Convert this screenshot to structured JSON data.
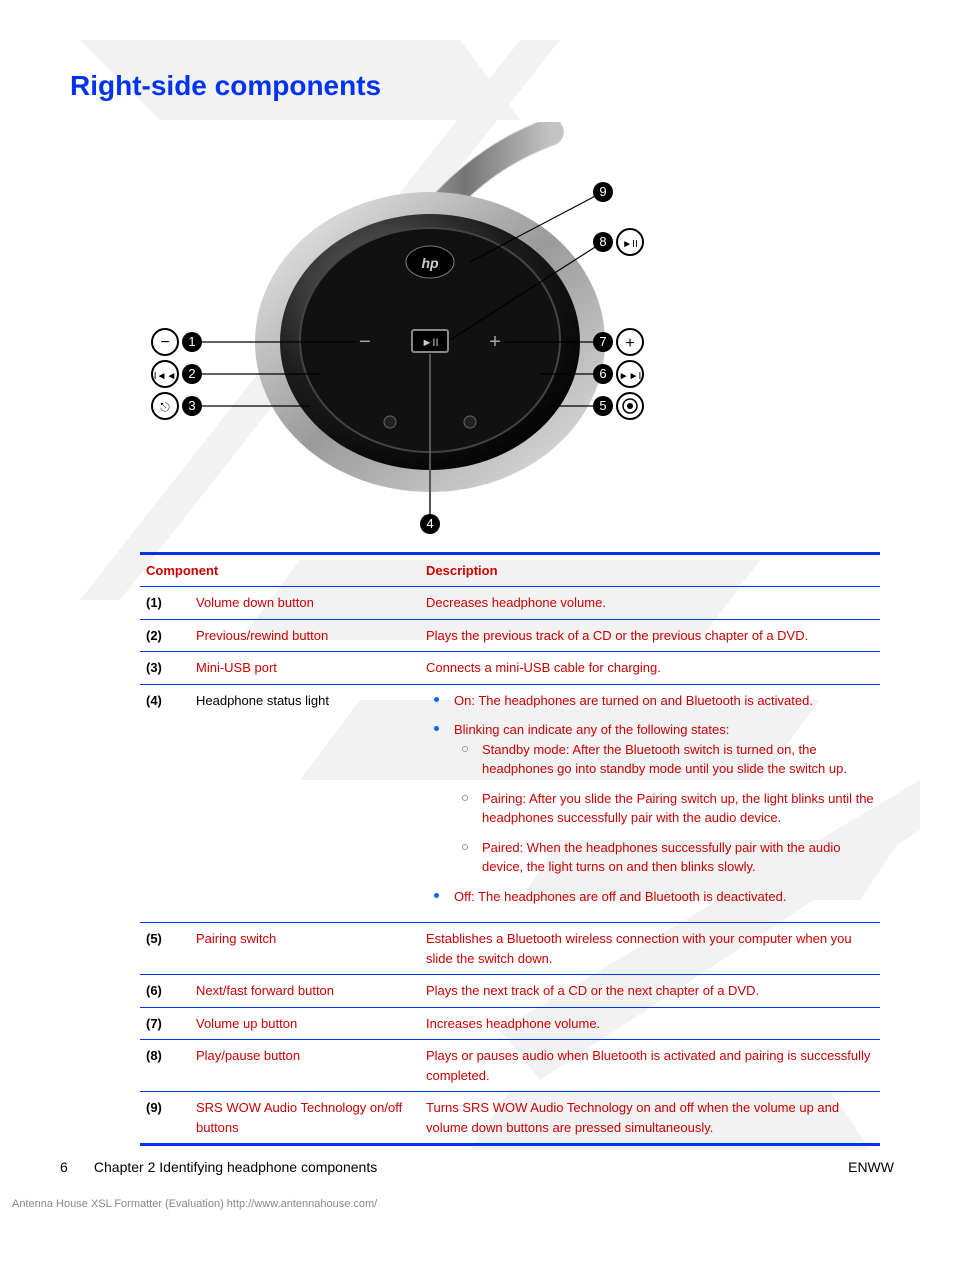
{
  "title": "Right-side components",
  "table": {
    "headers": {
      "component": "Component",
      "description": "Description"
    },
    "rows": [
      {
        "num": "(1)",
        "name": "Volume down button",
        "nameBlack": false,
        "desc": "Decreases headphone volume."
      },
      {
        "num": "(2)",
        "name": "Previous/rewind button",
        "nameBlack": false,
        "desc": "Plays the previous track of a CD or the previous chapter of a DVD."
      },
      {
        "num": "(3)",
        "name": "Mini-USB port",
        "nameBlack": false,
        "desc": "Connects a mini-USB cable for charging."
      },
      {
        "num": "(4)",
        "name": "Headphone status light",
        "nameBlack": true,
        "desc": null,
        "bullets": [
          "On: The headphones are turned on and Bluetooth is activated.",
          "Blinking can indicate any of the following states:",
          "Off: The headphones are off and Bluetooth is deactivated."
        ],
        "sub": [
          "Standby mode: After the Bluetooth switch is turned on, the headphones go into standby mode until you slide the switch up.",
          "Pairing: After you slide the Pairing switch up, the light blinks until the headphones successfully pair with the audio device.",
          "Paired: When the headphones successfully pair with the audio device, the light turns on and then blinks slowly."
        ]
      },
      {
        "num": "(5)",
        "name": "Pairing switch",
        "nameBlack": false,
        "desc": "Establishes a Bluetooth wireless connection with your computer when you slide the switch down."
      },
      {
        "num": "(6)",
        "name": "Next/fast forward button",
        "nameBlack": false,
        "desc": "Plays the next track of a CD or the next chapter of a DVD."
      },
      {
        "num": "(7)",
        "name": "Volume up button",
        "nameBlack": false,
        "desc": "Increases headphone volume."
      },
      {
        "num": "(8)",
        "name": "Play/pause button",
        "nameBlack": false,
        "desc": "Plays or pauses audio when Bluetooth is activated and pairing is successfully completed."
      },
      {
        "num": "(9)",
        "name": "SRS WOW Audio Technology on/off buttons",
        "nameBlack": false,
        "desc": "Turns SRS WOW Audio Technology on and off when the volume up and volume down buttons are pressed simultaneously."
      }
    ]
  },
  "footer": {
    "pageNum": "6",
    "chapter": "Chapter 2   Identifying headphone components",
    "right": "ENWW"
  },
  "evalNote": "Antenna House XSL Formatter (Evaluation)  http://www.antennahouse.com/",
  "diagram": {
    "callouts": {
      "1": "1",
      "2": "2",
      "3": "3",
      "4": "4",
      "5": "5",
      "6": "6",
      "7": "7",
      "8": "8",
      "9": "9"
    },
    "iconText": {
      "minus": "−",
      "plus": "+",
      "prev": "◄◄",
      "next": "►►",
      "play": "►II",
      "pairing": "◎",
      "usb": "⇐"
    },
    "colors": {
      "body": "#2b2b2b",
      "rim": "#bfbfbf",
      "rim2": "#8a8a8a",
      "callout": "#000",
      "calloutText": "#fff",
      "iconRing": "#333",
      "label": "#000"
    }
  }
}
